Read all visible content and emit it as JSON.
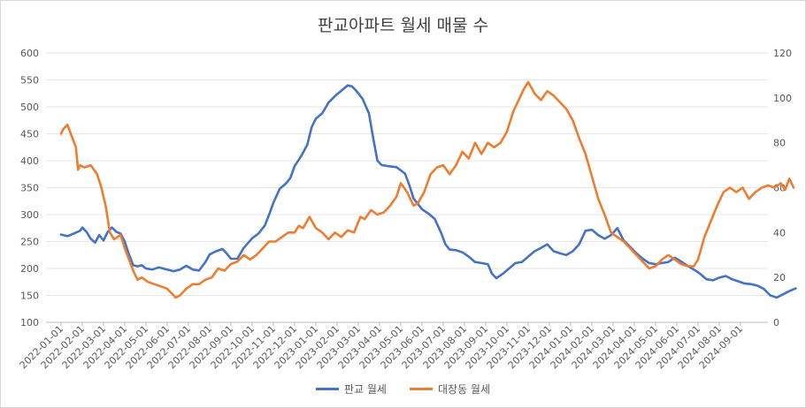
{
  "chart_data": {
    "type": "line",
    "title": "판교아파트 월세 매물 수",
    "y_left": {
      "min": 100,
      "max": 600,
      "ticks": [
        "100",
        "150",
        "200",
        "250",
        "300",
        "350",
        "400",
        "450",
        "500",
        "550",
        "600"
      ]
    },
    "y_right": {
      "min": 0,
      "max": 120,
      "ticks": [
        "0",
        "20",
        "40",
        "60",
        "80",
        "100",
        "120"
      ]
    },
    "x_ticks": [
      "2022-01-01",
      "2022-02-01",
      "2022-03-01",
      "2022-04-01",
      "2022-05-01",
      "2022-06-01",
      "2022-07-01",
      "2022-08-01",
      "2022-09-01",
      "2022-10-01",
      "2022-11-01",
      "2022-12-01",
      "2023-01-01",
      "2023-02-01",
      "2023-03-01",
      "2023-04-01",
      "2023-05-01",
      "2023-06-01",
      "2023-07-01",
      "2023-08-01",
      "2023-09-01",
      "2023-10-01",
      "2023-11-01",
      "2023-12-01",
      "2024-01-01",
      "2024-02-01",
      "2024-03-01",
      "2024-04-01",
      "2024-05-01",
      "2024-06-01",
      "2024-07-01",
      "2024-08-01",
      "2024-09-01"
    ],
    "series": [
      {
        "name": "판교 월세",
        "axis": "left",
        "color": "#4472C4",
        "points": [
          [
            0,
            263
          ],
          [
            0.3,
            260
          ],
          [
            0.6,
            265
          ],
          [
            0.9,
            270
          ],
          [
            1.0,
            276
          ],
          [
            1.2,
            268
          ],
          [
            1.4,
            255
          ],
          [
            1.6,
            248
          ],
          [
            1.8,
            262
          ],
          [
            2.0,
            252
          ],
          [
            2.2,
            268
          ],
          [
            2.4,
            276
          ],
          [
            2.6,
            268
          ],
          [
            2.8,
            265
          ],
          [
            3.0,
            250
          ],
          [
            3.2,
            226
          ],
          [
            3.4,
            206
          ],
          [
            3.6,
            204
          ],
          [
            3.8,
            206
          ],
          [
            4.0,
            200
          ],
          [
            4.3,
            198
          ],
          [
            4.6,
            202
          ],
          [
            5.0,
            198
          ],
          [
            5.3,
            195
          ],
          [
            5.6,
            198
          ],
          [
            5.9,
            205
          ],
          [
            6.2,
            198
          ],
          [
            6.5,
            196
          ],
          [
            6.8,
            212
          ],
          [
            7.0,
            226
          ],
          [
            7.3,
            232
          ],
          [
            7.6,
            236
          ],
          [
            7.8,
            228
          ],
          [
            8.0,
            218
          ],
          [
            8.3,
            218
          ],
          [
            8.6,
            238
          ],
          [
            9.0,
            256
          ],
          [
            9.3,
            265
          ],
          [
            9.6,
            280
          ],
          [
            9.8,
            300
          ],
          [
            10.0,
            322
          ],
          [
            10.3,
            348
          ],
          [
            10.6,
            358
          ],
          [
            10.8,
            368
          ],
          [
            11.0,
            390
          ],
          [
            11.3,
            408
          ],
          [
            11.6,
            430
          ],
          [
            11.8,
            462
          ],
          [
            12.0,
            478
          ],
          [
            12.3,
            488
          ],
          [
            12.6,
            508
          ],
          [
            12.9,
            520
          ],
          [
            13.2,
            530
          ],
          [
            13.5,
            540
          ],
          [
            13.7,
            538
          ],
          [
            13.9,
            530
          ],
          [
            14.2,
            515
          ],
          [
            14.5,
            488
          ],
          [
            14.7,
            442
          ],
          [
            14.9,
            400
          ],
          [
            15.1,
            392
          ],
          [
            15.4,
            390
          ],
          [
            15.8,
            388
          ],
          [
            16.2,
            376
          ],
          [
            16.4,
            355
          ],
          [
            16.6,
            330
          ],
          [
            16.8,
            320
          ],
          [
            17.0,
            310
          ],
          [
            17.3,
            302
          ],
          [
            17.6,
            292
          ],
          [
            17.9,
            266
          ],
          [
            18.1,
            245
          ],
          [
            18.3,
            235
          ],
          [
            18.6,
            234
          ],
          [
            18.9,
            230
          ],
          [
            19.2,
            222
          ],
          [
            19.5,
            212
          ],
          [
            19.8,
            210
          ],
          [
            20.1,
            208
          ],
          [
            20.3,
            190
          ],
          [
            20.5,
            182
          ],
          [
            20.8,
            190
          ],
          [
            21.1,
            200
          ],
          [
            21.4,
            210
          ],
          [
            21.7,
            212
          ],
          [
            22.0,
            222
          ],
          [
            22.3,
            232
          ],
          [
            22.6,
            238
          ],
          [
            22.9,
            245
          ],
          [
            23.2,
            232
          ],
          [
            23.5,
            228
          ],
          [
            23.8,
            225
          ],
          [
            24.1,
            232
          ],
          [
            24.4,
            245
          ],
          [
            24.7,
            270
          ],
          [
            25.0,
            272
          ],
          [
            25.3,
            262
          ],
          [
            25.6,
            255
          ],
          [
            25.9,
            262
          ],
          [
            26.2,
            275
          ],
          [
            26.5,
            252
          ],
          [
            26.8,
            240
          ],
          [
            27.1,
            228
          ],
          [
            27.4,
            218
          ],
          [
            27.7,
            210
          ],
          [
            28.0,
            208
          ],
          [
            28.3,
            210
          ],
          [
            28.6,
            212
          ],
          [
            28.9,
            220
          ],
          [
            29.2,
            213
          ],
          [
            29.5,
            205
          ],
          [
            29.8,
            198
          ],
          [
            30.1,
            190
          ],
          [
            30.4,
            180
          ],
          [
            30.7,
            178
          ],
          [
            31.0,
            183
          ],
          [
            31.3,
            186
          ],
          [
            31.6,
            180
          ],
          [
            31.9,
            176
          ],
          [
            32.2,
            172
          ],
          [
            32.5,
            171
          ],
          [
            32.8,
            168
          ],
          [
            33.1,
            162
          ],
          [
            33.4,
            150
          ],
          [
            33.7,
            146
          ],
          [
            34.0,
            152
          ],
          [
            34.3,
            158
          ],
          [
            34.6,
            163
          ]
        ]
      },
      {
        "name": "대장동 월세",
        "axis": "right",
        "color": "#ED7D31",
        "points": [
          [
            0,
            84
          ],
          [
            0.1,
            86
          ],
          [
            0.3,
            88
          ],
          [
            0.5,
            83
          ],
          [
            0.7,
            78
          ],
          [
            0.8,
            68
          ],
          [
            0.9,
            70
          ],
          [
            1.1,
            69
          ],
          [
            1.4,
            70
          ],
          [
            1.7,
            66
          ],
          [
            1.9,
            60
          ],
          [
            2.1,
            52
          ],
          [
            2.3,
            40
          ],
          [
            2.5,
            37
          ],
          [
            2.8,
            39
          ],
          [
            3.0,
            33
          ],
          [
            3.2,
            28
          ],
          [
            3.4,
            23
          ],
          [
            3.6,
            19
          ],
          [
            3.8,
            20
          ],
          [
            4.1,
            18
          ],
          [
            4.4,
            17
          ],
          [
            4.7,
            16
          ],
          [
            5.0,
            15
          ],
          [
            5.2,
            13
          ],
          [
            5.4,
            11
          ],
          [
            5.6,
            12
          ],
          [
            5.9,
            15
          ],
          [
            6.2,
            17
          ],
          [
            6.5,
            17
          ],
          [
            6.8,
            19
          ],
          [
            7.1,
            20
          ],
          [
            7.4,
            24
          ],
          [
            7.7,
            23
          ],
          [
            8.0,
            26
          ],
          [
            8.3,
            27
          ],
          [
            8.6,
            30
          ],
          [
            8.9,
            28
          ],
          [
            9.2,
            30
          ],
          [
            9.5,
            33
          ],
          [
            9.8,
            36
          ],
          [
            10.1,
            36
          ],
          [
            10.4,
            38
          ],
          [
            10.7,
            40
          ],
          [
            11.0,
            40
          ],
          [
            11.2,
            43
          ],
          [
            11.4,
            42
          ],
          [
            11.7,
            47
          ],
          [
            12.0,
            42
          ],
          [
            12.3,
            40
          ],
          [
            12.6,
            37
          ],
          [
            12.9,
            40
          ],
          [
            13.2,
            38
          ],
          [
            13.5,
            41
          ],
          [
            13.8,
            40
          ],
          [
            14.1,
            47
          ],
          [
            14.3,
            46
          ],
          [
            14.6,
            50
          ],
          [
            14.9,
            48
          ],
          [
            15.2,
            49
          ],
          [
            15.5,
            52
          ],
          [
            15.8,
            56
          ],
          [
            16.0,
            62
          ],
          [
            16.3,
            58
          ],
          [
            16.6,
            52
          ],
          [
            16.8,
            53
          ],
          [
            17.1,
            58
          ],
          [
            17.4,
            66
          ],
          [
            17.7,
            69
          ],
          [
            18.0,
            70
          ],
          [
            18.3,
            66
          ],
          [
            18.6,
            70
          ],
          [
            18.9,
            76
          ],
          [
            19.2,
            73
          ],
          [
            19.5,
            80
          ],
          [
            19.8,
            75
          ],
          [
            20.1,
            80
          ],
          [
            20.4,
            78
          ],
          [
            20.7,
            80
          ],
          [
            21.0,
            85
          ],
          [
            21.3,
            94
          ],
          [
            21.6,
            100
          ],
          [
            21.8,
            104
          ],
          [
            22.0,
            107
          ],
          [
            22.3,
            102
          ],
          [
            22.6,
            99
          ],
          [
            22.9,
            103
          ],
          [
            23.2,
            101
          ],
          [
            23.5,
            98
          ],
          [
            23.8,
            95
          ],
          [
            24.1,
            90
          ],
          [
            24.4,
            82
          ],
          [
            24.7,
            75
          ],
          [
            25.0,
            65
          ],
          [
            25.3,
            55
          ],
          [
            25.6,
            48
          ],
          [
            25.9,
            40
          ],
          [
            26.2,
            38
          ],
          [
            26.5,
            36
          ],
          [
            26.8,
            33
          ],
          [
            27.1,
            30
          ],
          [
            27.4,
            27
          ],
          [
            27.7,
            24
          ],
          [
            28.0,
            25
          ],
          [
            28.3,
            28
          ],
          [
            28.6,
            30
          ],
          [
            28.9,
            28
          ],
          [
            29.2,
            26
          ],
          [
            29.5,
            25
          ],
          [
            29.8,
            25
          ],
          [
            30.0,
            28
          ],
          [
            30.3,
            38
          ],
          [
            30.6,
            45
          ],
          [
            30.9,
            52
          ],
          [
            31.2,
            58
          ],
          [
            31.5,
            60
          ],
          [
            31.8,
            58
          ],
          [
            32.1,
            60
          ],
          [
            32.4,
            55
          ],
          [
            32.7,
            58
          ],
          [
            33.0,
            60
          ],
          [
            33.3,
            61
          ],
          [
            33.6,
            60
          ],
          [
            33.9,
            62
          ],
          [
            34.1,
            59
          ],
          [
            34.3,
            64
          ],
          [
            34.5,
            60
          ]
        ]
      }
    ]
  }
}
